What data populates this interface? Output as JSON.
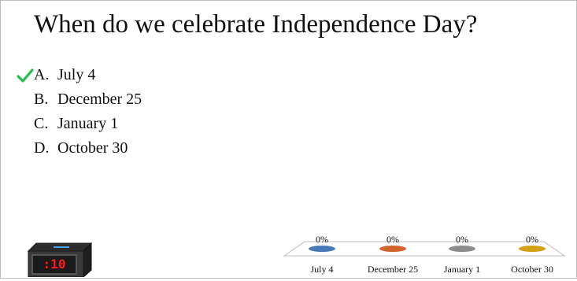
{
  "question": {
    "text": "When do we celebrate Independence Day?"
  },
  "answers": [
    {
      "letter": "A.",
      "text": "July 4",
      "correct": true
    },
    {
      "letter": "B.",
      "text": "December 25",
      "correct": false
    },
    {
      "letter": "C.",
      "text": "January 1",
      "correct": false
    },
    {
      "letter": "D.",
      "text": "October 30",
      "correct": false
    }
  ],
  "timer": {
    "display": ":10"
  },
  "colors": {
    "check": "#22c04a",
    "timer_digits": "#ff1a1a",
    "series": [
      "#4a7ab5",
      "#d2652d",
      "#8c8c8c",
      "#d4a017"
    ]
  },
  "chart_data": {
    "type": "bar",
    "categories": [
      "July 4",
      "December 25",
      "January 1",
      "October 30"
    ],
    "values": [
      0,
      0,
      0,
      0
    ],
    "value_labels": [
      "0%",
      "0%",
      "0%",
      "0%"
    ],
    "unit": "%"
  }
}
